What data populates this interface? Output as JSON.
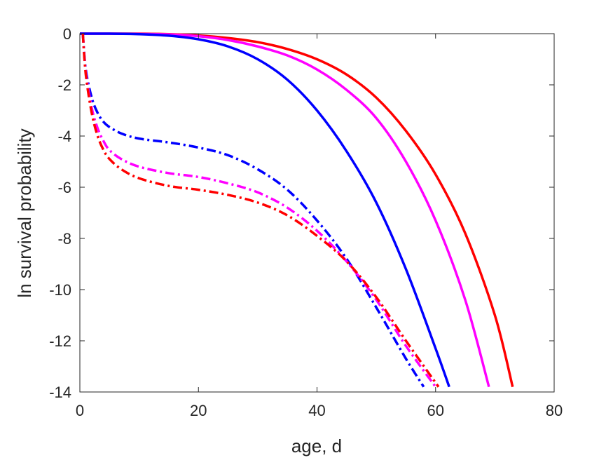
{
  "chart_data": {
    "type": "line",
    "title": "",
    "xlabel": "age, d",
    "ylabel": "ln survival probability",
    "xlim": [
      0,
      80
    ],
    "ylim": [
      -14,
      0
    ],
    "xticks": [
      0,
      20,
      40,
      60,
      80
    ],
    "yticks": [
      0,
      -2,
      -4,
      -6,
      -8,
      -10,
      -12,
      -14
    ],
    "grid": false,
    "legend": "none",
    "series": [
      {
        "color": "#ff0000",
        "style": "solid",
        "x": [
          0,
          5,
          10,
          15,
          20,
          25,
          30,
          35,
          40,
          45,
          50,
          55,
          60,
          65,
          70,
          73
        ],
        "y": [
          0,
          0,
          0,
          -0.02,
          -0.07,
          -0.17,
          -0.33,
          -0.6,
          -1.0,
          -1.6,
          -2.5,
          -3.8,
          -5.5,
          -7.8,
          -11.0,
          -13.8
        ]
      },
      {
        "color": "#ff00ff",
        "style": "solid",
        "x": [
          0,
          5,
          10,
          15,
          20,
          25,
          30,
          35,
          40,
          45,
          50,
          55,
          60,
          65,
          69
        ],
        "y": [
          0,
          0,
          -0.01,
          -0.03,
          -0.1,
          -0.25,
          -0.5,
          -0.85,
          -1.4,
          -2.2,
          -3.3,
          -5.0,
          -7.3,
          -10.4,
          -13.8
        ]
      },
      {
        "color": "#0000ff",
        "style": "solid",
        "x": [
          0,
          5,
          10,
          15,
          20,
          25,
          30,
          35,
          40,
          45,
          50,
          55,
          60,
          62.3
        ],
        "y": [
          0,
          0,
          -0.02,
          -0.08,
          -0.22,
          -0.5,
          -1.0,
          -1.8,
          -3.0,
          -4.6,
          -6.6,
          -9.2,
          -12.3,
          -13.8
        ]
      },
      {
        "color": "#0000ff",
        "style": "dashdot",
        "x": [
          0.5,
          1,
          2,
          3,
          4,
          5,
          7,
          10,
          15,
          20,
          25,
          30,
          35,
          40,
          45,
          50,
          55,
          58
        ],
        "y": [
          0,
          -1.4,
          -2.5,
          -3.1,
          -3.45,
          -3.65,
          -3.9,
          -4.1,
          -4.25,
          -4.45,
          -4.75,
          -5.3,
          -6.1,
          -7.3,
          -8.8,
          -10.7,
          -12.7,
          -13.8
        ]
      },
      {
        "color": "#ff00ff",
        "style": "dashdot",
        "x": [
          0.5,
          1,
          2,
          3,
          4,
          5,
          7,
          10,
          15,
          20,
          25,
          30,
          35,
          40,
          45,
          50,
          55,
          60
        ],
        "y": [
          0,
          -1.5,
          -2.9,
          -3.7,
          -4.2,
          -4.55,
          -4.9,
          -5.2,
          -5.45,
          -5.6,
          -5.85,
          -6.2,
          -6.8,
          -7.7,
          -8.9,
          -10.4,
          -12.2,
          -13.8
        ]
      },
      {
        "color": "#ff0000",
        "style": "dashdot",
        "x": [
          0.5,
          1,
          2,
          3,
          4,
          5,
          7,
          10,
          15,
          20,
          25,
          30,
          35,
          40,
          45,
          50,
          55,
          60.5
        ],
        "y": [
          0,
          -1.6,
          -3.1,
          -4.0,
          -4.55,
          -4.9,
          -5.3,
          -5.65,
          -5.95,
          -6.1,
          -6.3,
          -6.6,
          -7.1,
          -7.9,
          -8.9,
          -10.3,
          -12.0,
          -13.8
        ]
      }
    ]
  }
}
